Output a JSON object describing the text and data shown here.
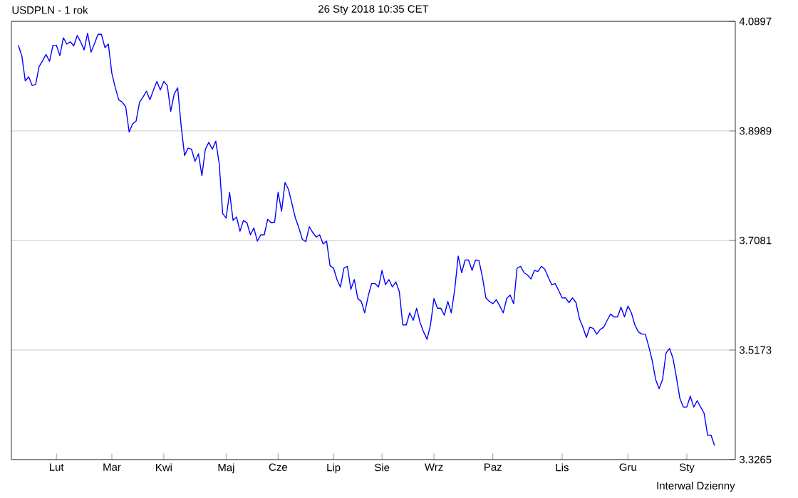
{
  "chart_data": {
    "type": "line",
    "title": "USDPLN - 1 rok",
    "subtitle": "26 Sty 2018 10:35 CET",
    "annotations": [
      "Interwal Dzienny"
    ],
    "categories": [
      null,
      null,
      null,
      null,
      null,
      null,
      null,
      null,
      null,
      null,
      null,
      "Lut",
      null,
      null,
      null,
      null,
      null,
      null,
      null,
      null,
      null,
      null,
      null,
      null,
      null,
      null,
      null,
      "Mar",
      null,
      null,
      null,
      null,
      null,
      null,
      null,
      null,
      null,
      null,
      null,
      null,
      null,
      null,
      "Kwi",
      null,
      null,
      null,
      null,
      null,
      null,
      null,
      null,
      null,
      null,
      null,
      null,
      null,
      null,
      null,
      null,
      null,
      "Maj",
      null,
      null,
      null,
      null,
      null,
      null,
      null,
      null,
      null,
      null,
      null,
      null,
      null,
      null,
      "Cze",
      null,
      null,
      null,
      null,
      null,
      null,
      null,
      null,
      null,
      null,
      null,
      null,
      null,
      null,
      null,
      "Lip",
      null,
      null,
      null,
      null,
      null,
      null,
      null,
      null,
      null,
      null,
      null,
      null,
      null,
      "Sie",
      null,
      null,
      null,
      null,
      null,
      null,
      null,
      null,
      null,
      null,
      null,
      null,
      null,
      null,
      "Wrz",
      null,
      null,
      null,
      null,
      null,
      null,
      null,
      null,
      null,
      null,
      null,
      null,
      null,
      null,
      null,
      null,
      "Paz",
      null,
      null,
      null,
      null,
      null,
      null,
      null,
      null,
      null,
      null,
      null,
      null,
      null,
      null,
      null,
      null,
      null,
      null,
      null,
      "Lis",
      null,
      null,
      null,
      null,
      null,
      null,
      null,
      null,
      null,
      null,
      null,
      null,
      null,
      null,
      null,
      null,
      null,
      null,
      "Gru",
      null,
      null,
      null,
      null,
      null,
      null,
      null,
      null,
      null,
      null,
      null,
      null,
      null,
      null,
      null,
      null,
      "Sty",
      null,
      null,
      null,
      null,
      null,
      null,
      null,
      null
    ],
    "series": [
      {
        "color": "#0000ff",
        "values": [
          4.048,
          4.03,
          3.986,
          3.993,
          3.978,
          3.98,
          4.011,
          4.021,
          4.032,
          4.02,
          4.048,
          4.048,
          4.03,
          4.061,
          4.05,
          4.054,
          4.047,
          4.065,
          4.054,
          4.04,
          4.069,
          4.036,
          4.051,
          4.067,
          4.067,
          4.044,
          4.05,
          3.999,
          3.974,
          3.953,
          3.949,
          3.941,
          3.897,
          3.911,
          3.916,
          3.949,
          3.958,
          3.968,
          3.953,
          3.97,
          3.985,
          3.97,
          3.985,
          3.978,
          3.933,
          3.963,
          3.974,
          3.908,
          3.856,
          3.869,
          3.867,
          3.846,
          3.859,
          3.821,
          3.867,
          3.879,
          3.867,
          3.881,
          3.842,
          3.755,
          3.747,
          3.792,
          3.743,
          3.749,
          3.724,
          3.743,
          3.739,
          3.718,
          3.73,
          3.707,
          3.718,
          3.718,
          3.745,
          3.739,
          3.74,
          3.792,
          3.759,
          3.809,
          3.797,
          3.772,
          3.747,
          3.73,
          3.71,
          3.706,
          3.732,
          3.722,
          3.714,
          3.718,
          3.702,
          3.707,
          3.664,
          3.66,
          3.64,
          3.627,
          3.66,
          3.663,
          3.623,
          3.64,
          3.607,
          3.602,
          3.582,
          3.611,
          3.633,
          3.633,
          3.627,
          3.656,
          3.631,
          3.64,
          3.627,
          3.636,
          3.619,
          3.561,
          3.561,
          3.582,
          3.569,
          3.59,
          3.565,
          3.549,
          3.536,
          3.561,
          3.607,
          3.59,
          3.59,
          3.578,
          3.602,
          3.582,
          3.623,
          3.681,
          3.652,
          3.674,
          3.674,
          3.656,
          3.674,
          3.673,
          3.644,
          3.608,
          3.602,
          3.598,
          3.605,
          3.594,
          3.582,
          3.607,
          3.613,
          3.598,
          3.66,
          3.663,
          3.652,
          3.648,
          3.641,
          3.656,
          3.654,
          3.663,
          3.658,
          3.644,
          3.631,
          3.633,
          3.621,
          3.608,
          3.608,
          3.6,
          3.608,
          3.6,
          3.572,
          3.557,
          3.539,
          3.557,
          3.555,
          3.545,
          3.553,
          3.557,
          3.569,
          3.58,
          3.575,
          3.575,
          3.592,
          3.575,
          3.594,
          3.582,
          3.561,
          3.549,
          3.545,
          3.545,
          3.524,
          3.499,
          3.466,
          3.45,
          3.466,
          3.512,
          3.52,
          3.503,
          3.47,
          3.433,
          3.418,
          3.418,
          3.437,
          3.418,
          3.429,
          3.418,
          3.407,
          3.369,
          3.369,
          3.351
        ]
      }
    ],
    "ylim": [
      3.3265,
      4.0897
    ],
    "yticks": [
      3.3265,
      3.5173,
      3.7081,
      3.8989,
      4.0897
    ],
    "grid": "y",
    "line_style": "solid"
  }
}
